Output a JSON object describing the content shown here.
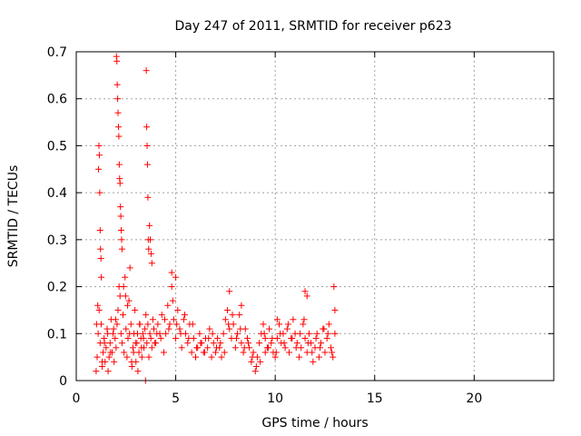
{
  "chart_data": {
    "type": "scatter",
    "title": "Day 247 of 2011, SRMTID for receiver p623",
    "xlabel": "GPS time / hours",
    "ylabel": "SRMTID / TECUs",
    "xlim": [
      0,
      24
    ],
    "ylim": [
      0,
      0.7
    ],
    "xticks": [
      "0",
      "5",
      "10",
      "15",
      "20"
    ],
    "yticks": [
      "0",
      "0.1",
      "0.2",
      "0.3",
      "0.4",
      "0.5",
      "0.6",
      "0.7"
    ],
    "grid": true,
    "legend": "none",
    "marker": "+",
    "color": "#ff0000",
    "series": [
      {
        "x": [
          1.0,
          1.05,
          1.1,
          1.15,
          1.2,
          1.25,
          1.3,
          1.35,
          1.4,
          1.45,
          1.5,
          1.55,
          1.6,
          1.65,
          1.7,
          1.75,
          1.8,
          1.85,
          1.9,
          1.95,
          2.0,
          2.05,
          2.1,
          2.15,
          2.2,
          2.25,
          2.3,
          2.35,
          2.4,
          2.45,
          2.5,
          2.55,
          2.6,
          2.65,
          2.7,
          2.75,
          2.8,
          2.85,
          2.9,
          2.95,
          3.0,
          3.05,
          3.1,
          3.15,
          3.2,
          3.25,
          3.3,
          3.35,
          3.4,
          3.45,
          3.5,
          3.55,
          3.6,
          3.65,
          3.7,
          3.75,
          3.8,
          3.85,
          3.9,
          3.95,
          1.12,
          1.14,
          1.16,
          1.18,
          1.2,
          1.22,
          1.24,
          1.26,
          2.02,
          2.04,
          2.06,
          2.08,
          2.1,
          2.12,
          2.14,
          2.16,
          2.18,
          2.2,
          2.22,
          2.24,
          2.26,
          2.28,
          2.3,
          3.52,
          3.54,
          3.56,
          3.58,
          3.6,
          3.62,
          3.64,
          3.68,
          3.72,
          3.76,
          3.8,
          1.02,
          1.08,
          1.3,
          1.42,
          1.58,
          1.72,
          1.88,
          1.98,
          2.38,
          2.48,
          2.58,
          2.68,
          2.78,
          2.88,
          2.98,
          3.08,
          3.18,
          3.28,
          3.38,
          3.48
        ],
        "y": [
          0.02,
          0.05,
          0.1,
          0.15,
          0.08,
          0.12,
          0.03,
          0.06,
          0.09,
          0.04,
          0.07,
          0.11,
          0.02,
          0.05,
          0.08,
          0.13,
          0.06,
          0.1,
          0.04,
          0.09,
          0.07,
          0.12,
          0.15,
          0.2,
          0.18,
          0.1,
          0.08,
          0.14,
          0.06,
          0.22,
          0.11,
          0.05,
          0.09,
          0.17,
          0.24,
          0.12,
          0.03,
          0.07,
          0.1,
          0.15,
          0.04,
          0.08,
          0.02,
          0.06,
          0.12,
          0.09,
          0.05,
          0.1,
          0.07,
          0.11,
          0.14,
          0.08,
          0.12,
          0.05,
          0.1,
          0.09,
          0.07,
          0.13,
          0.11,
          0.08,
          0.45,
          0.5,
          0.48,
          0.4,
          0.32,
          0.28,
          0.26,
          0.22,
          0.69,
          0.68,
          0.63,
          0.6,
          0.57,
          0.54,
          0.52,
          0.46,
          0.43,
          0.42,
          0.37,
          0.35,
          0.32,
          0.3,
          0.28,
          0.66,
          0.54,
          0.5,
          0.46,
          0.39,
          0.3,
          0.28,
          0.33,
          0.3,
          0.27,
          0.25,
          0.12,
          0.16,
          0.04,
          0.08,
          0.1,
          0.06,
          0.11,
          0.13,
          0.2,
          0.18,
          0.16,
          0.1,
          0.04,
          0.06,
          0.08,
          0.1,
          0.12,
          0.07,
          0.09,
          0.0
        ],
        "name": ""
      },
      {
        "x": [
          4.0,
          4.1,
          4.2,
          4.3,
          4.4,
          4.5,
          4.6,
          4.7,
          4.8,
          4.9,
          5.0,
          5.1,
          5.2,
          5.3,
          5.4,
          5.5,
          5.6,
          5.7,
          5.8,
          5.9,
          6.0,
          6.1,
          6.2,
          6.3,
          6.4,
          6.5,
          6.6,
          6.7,
          6.8,
          6.9,
          7.0,
          7.1,
          7.2,
          7.3,
          7.4,
          7.5,
          7.6,
          7.7,
          7.8,
          7.9,
          8.0,
          8.1,
          8.2,
          8.3,
          8.4,
          8.5,
          8.6,
          8.7,
          8.8,
          8.9,
          9.0,
          9.1,
          9.2,
          9.3,
          9.4,
          9.5,
          9.6,
          9.7,
          9.8,
          9.9,
          10.0,
          10.1,
          10.2,
          10.3,
          10.4,
          10.5,
          10.6,
          10.7,
          10.8,
          10.9,
          11.0,
          11.1,
          11.2,
          11.3,
          11.4,
          11.5,
          11.6,
          11.7,
          11.8,
          11.9,
          12.0,
          12.1,
          12.2,
          12.3,
          12.4,
          12.5,
          12.6,
          12.7,
          12.8,
          12.9,
          13.0,
          4.05,
          4.25,
          4.45,
          4.65,
          4.85,
          5.05,
          5.25,
          5.45,
          5.65,
          5.85,
          6.05,
          6.25,
          6.45,
          6.65,
          6.85,
          7.05,
          7.25,
          7.45,
          7.65,
          7.85,
          8.05,
          8.25,
          8.45,
          8.65,
          8.85,
          9.05,
          9.25,
          9.45,
          9.65,
          9.85,
          10.05,
          10.25,
          10.45,
          10.65,
          10.85,
          11.05,
          11.25,
          11.45,
          11.65,
          11.85,
          12.05,
          12.25,
          12.45,
          12.65,
          12.85,
          4.8,
          5.0,
          7.7,
          8.3,
          11.5,
          11.6,
          12.95,
          13.0,
          9.5,
          10.1
        ],
        "y": [
          0.08,
          0.12,
          0.1,
          0.14,
          0.06,
          0.1,
          0.16,
          0.12,
          0.2,
          0.13,
          0.09,
          0.15,
          0.11,
          0.07,
          0.13,
          0.1,
          0.08,
          0.12,
          0.06,
          0.09,
          0.05,
          0.07,
          0.1,
          0.08,
          0.06,
          0.09,
          0.07,
          0.11,
          0.05,
          0.08,
          0.06,
          0.09,
          0.07,
          0.05,
          0.1,
          0.13,
          0.15,
          0.11,
          0.09,
          0.12,
          0.07,
          0.1,
          0.14,
          0.08,
          0.06,
          0.11,
          0.09,
          0.07,
          0.04,
          0.06,
          0.02,
          0.05,
          0.08,
          0.1,
          0.12,
          0.09,
          0.07,
          0.11,
          0.08,
          0.06,
          0.05,
          0.09,
          0.12,
          0.08,
          0.1,
          0.07,
          0.11,
          0.06,
          0.09,
          0.13,
          0.1,
          0.08,
          0.05,
          0.07,
          0.12,
          0.09,
          0.06,
          0.1,
          0.08,
          0.04,
          0.07,
          0.1,
          0.05,
          0.08,
          0.11,
          0.06,
          0.09,
          0.12,
          0.07,
          0.05,
          0.1,
          0.1,
          0.09,
          0.13,
          0.11,
          0.17,
          0.12,
          0.1,
          0.14,
          0.09,
          0.12,
          0.07,
          0.08,
          0.06,
          0.09,
          0.1,
          0.07,
          0.08,
          0.06,
          0.12,
          0.14,
          0.09,
          0.11,
          0.07,
          0.08,
          0.05,
          0.03,
          0.04,
          0.1,
          0.07,
          0.09,
          0.06,
          0.1,
          0.08,
          0.12,
          0.09,
          0.07,
          0.1,
          0.13,
          0.08,
          0.06,
          0.09,
          0.07,
          0.11,
          0.1,
          0.06,
          0.23,
          0.22,
          0.19,
          0.16,
          0.19,
          0.18,
          0.2,
          0.15,
          0.06,
          0.13
        ],
        "name": ""
      }
    ]
  }
}
